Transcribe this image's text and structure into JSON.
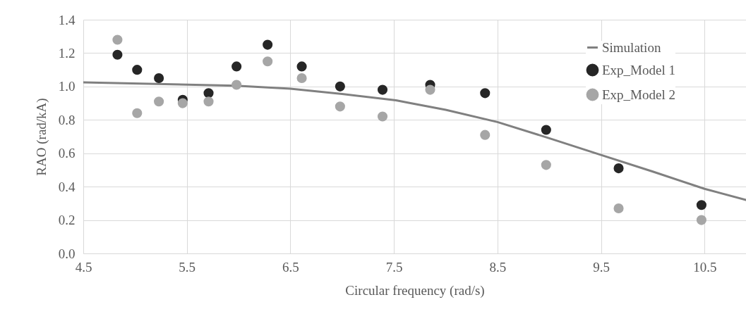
{
  "chart_data": {
    "type": "scatter",
    "xlabel": "Circular frequency (rad/s)",
    "ylabel": "RAO (rad/kA)",
    "xlim": [
      4.5,
      10.9
    ],
    "xticks": [
      4.5,
      5.5,
      6.5,
      7.5,
      8.5,
      9.5,
      10.5
    ],
    "ylim": [
      0,
      1.4
    ],
    "yticks": [
      {
        "value": 0,
        "label": "0.0"
      },
      0.2,
      0.4,
      0.6,
      0.8,
      {
        "value": 1,
        "label": "1.0"
      },
      1.2,
      1.4
    ],
    "grid": true,
    "legend": "top right",
    "marker": "circle",
    "series": [
      {
        "name": "Simulation",
        "type": "line",
        "marker": "none",
        "line_style": "solid",
        "color": "#808080",
        "x": [
          4.5,
          5.97,
          6.5,
          7.0,
          7.52,
          7.66,
          8.0,
          8.5,
          9.0,
          9.5,
          10.0,
          10.5,
          10.9
        ],
        "values": [
          1.025,
          1.005,
          0.987,
          0.955,
          0.917,
          0.9,
          0.86,
          0.787,
          0.69,
          0.59,
          0.49,
          0.387,
          0.32
        ]
      },
      {
        "name": "Exp_Model 1",
        "color": "#262626",
        "x": [
          4.83,
          5.02,
          5.23,
          5.46,
          5.71,
          5.98,
          6.28,
          6.61,
          6.98,
          7.39,
          7.85,
          8.38,
          8.97,
          9.67,
          10.47
        ],
        "values": [
          1.19,
          1.1,
          1.05,
          0.92,
          0.96,
          1.12,
          1.25,
          1.12,
          1.0,
          0.98,
          1.01,
          0.96,
          0.74,
          0.51,
          0.29
        ]
      },
      {
        "name": "Exp_Model 2",
        "color": "#a6a6a6",
        "x": [
          4.83,
          5.02,
          5.23,
          5.46,
          5.71,
          5.98,
          6.28,
          6.61,
          6.98,
          7.39,
          7.85,
          8.38,
          8.97,
          9.67,
          10.47
        ],
        "values": [
          1.28,
          0.84,
          0.91,
          0.9,
          0.91,
          1.01,
          1.15,
          1.05,
          0.88,
          0.82,
          0.98,
          0.71,
          0.53,
          0.27,
          0.2
        ]
      }
    ]
  }
}
